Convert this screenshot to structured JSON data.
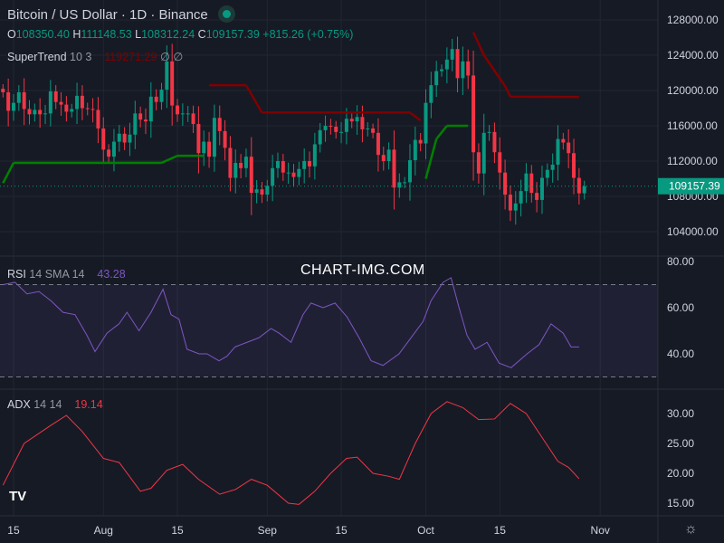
{
  "header": {
    "title": "Bitcoin / US Dollar · 1D · Binance",
    "market_status": "open",
    "ohlc": {
      "o_label": "O",
      "o": "108350.40",
      "h_label": "H",
      "h": "111148.53",
      "l_label": "L",
      "l": "108312.24",
      "c_label": "C",
      "c": "109157.39",
      "change": "+815.26 (+0.75%)"
    }
  },
  "indicators": {
    "supertrend": {
      "name": "SuperTrend",
      "params": "10 3",
      "value": "119271.29",
      "v2": "∅",
      "v3": "∅"
    },
    "rsi": {
      "name": "RSI",
      "params": "14 SMA 14",
      "value": "43.28"
    },
    "adx": {
      "name": "ADX",
      "params": "14 14",
      "value": "19.14"
    }
  },
  "watermark": "CHART-IMG.COM",
  "colors": {
    "up": "#089981",
    "down": "#f23645",
    "st_up": "#008000",
    "st_down": "#800000",
    "rsi": "#7e57c2",
    "adx": "#f23645",
    "bg": "#161a25"
  },
  "chart_data": {
    "type": "candlestick",
    "start_date": "2025-07-13",
    "price_axis": {
      "ticks": [
        "128000.00",
        "124000.00",
        "120000.00",
        "116000.00",
        "112000.00",
        "108000.00",
        "104000.00"
      ],
      "range": [
        102500,
        129500
      ]
    },
    "last_price": "109157.39",
    "x_ticks": [
      {
        "label": "15",
        "date": "07-15"
      },
      {
        "label": "Aug",
        "date": "08-01"
      },
      {
        "label": "15",
        "date": "08-15"
      },
      {
        "label": "Sep",
        "date": "09-01"
      },
      {
        "label": "15",
        "date": "09-15"
      },
      {
        "label": "Oct",
        "date": "10-01"
      },
      {
        "label": "15",
        "date": "10-15"
      },
      {
        "label": "Nov",
        "date": "11-01"
      }
    ],
    "closes_k": [
      119.8,
      117.7,
      118.6,
      119.8,
      117.9,
      117.3,
      117.8,
      117.3,
      117.4,
      119.9,
      118.7,
      118.4,
      117.6,
      117.9,
      119.4,
      118.0,
      117.9,
      117.8,
      115.7,
      113.3,
      112.5,
      114.2,
      115.1,
      114.1,
      115.0,
      117.4,
      116.7,
      116.5,
      119.3,
      118.7,
      120.1,
      123.3,
      118.3,
      117.3,
      117.4,
      117.4,
      116.2,
      112.9,
      114.2,
      112.5,
      116.9,
      115.4,
      113.5,
      110.1,
      111.8,
      111.2,
      112.5,
      108.4,
      108.8,
      108.2,
      109.2,
      111.2,
      112.0,
      110.7,
      110.7,
      110.2,
      111.1,
      112.0,
      111.4,
      113.9,
      115.5,
      116.0,
      115.9,
      115.3,
      115.3,
      116.8,
      116.5,
      117.0,
      115.6,
      115.7,
      115.2,
      112.7,
      112.0,
      113.3,
      109.0,
      109.6,
      109.6,
      112.1,
      114.4,
      114.0,
      118.6,
      120.6,
      122.2,
      122.4,
      123.5,
      124.7,
      121.4,
      123.3,
      121.7,
      113.0,
      110.6,
      115.2,
      115.3,
      113.0,
      110.7,
      108.2,
      106.4,
      107.2,
      108.6,
      110.6,
      108.4,
      107.6,
      110.1,
      111.0,
      111.6,
      114.5,
      114.1,
      112.9,
      110.1,
      108.35,
      109.157
    ],
    "supertrend": [
      [
        0,
        109.5,
        "up"
      ],
      [
        2,
        111.8,
        "up"
      ],
      [
        30,
        111.8,
        "up"
      ],
      [
        33,
        112.6,
        "up"
      ],
      [
        38,
        112.6,
        "up"
      ],
      [
        39,
        120.6,
        "down"
      ],
      [
        46,
        120.6,
        "down"
      ],
      [
        49,
        117.5,
        "down"
      ],
      [
        77,
        117.5,
        "down"
      ],
      [
        79,
        116.6,
        "down"
      ],
      [
        80,
        110.0,
        "up"
      ],
      [
        82,
        114.5,
        "up"
      ],
      [
        84,
        116.0,
        "up"
      ],
      [
        88,
        116.0,
        "up"
      ],
      [
        89,
        126.6,
        "down"
      ],
      [
        91,
        124.0,
        "down"
      ],
      [
        95,
        120.5,
        "down"
      ],
      [
        96,
        119.3,
        "down"
      ],
      [
        109,
        119.27,
        "down"
      ]
    ],
    "rsi": {
      "ticks": [
        "80.00",
        "60.00",
        "40.00"
      ],
      "band": [
        30,
        70
      ],
      "points": [
        [
          0,
          70
        ],
        [
          3,
          71
        ],
        [
          6,
          66
        ],
        [
          9,
          67
        ],
        [
          12,
          63
        ],
        [
          15,
          58
        ],
        [
          18,
          57
        ],
        [
          21,
          48
        ],
        [
          23,
          41
        ],
        [
          26,
          49
        ],
        [
          29,
          53
        ],
        [
          31,
          58
        ],
        [
          34,
          50
        ],
        [
          37,
          58
        ],
        [
          40,
          68
        ],
        [
          42,
          57
        ],
        [
          44,
          55
        ],
        [
          46,
          42
        ],
        [
          49,
          40
        ],
        [
          51,
          40
        ],
        [
          54,
          37
        ],
        [
          56,
          39
        ],
        [
          58,
          43
        ],
        [
          61,
          45
        ],
        [
          64,
          47
        ],
        [
          67,
          51
        ],
        [
          69,
          49
        ],
        [
          72,
          45
        ],
        [
          75,
          57
        ],
        [
          77,
          62
        ],
        [
          80,
          60
        ],
        [
          83,
          62
        ],
        [
          86,
          56
        ],
        [
          89,
          47
        ],
        [
          92,
          37
        ],
        [
          95,
          35
        ],
        [
          99,
          40
        ],
        [
          102,
          47
        ],
        [
          105,
          54
        ],
        [
          107,
          63
        ],
        [
          110,
          71
        ],
        [
          112,
          73
        ],
        [
          114,
          60
        ],
        [
          116,
          48
        ],
        [
          118,
          42
        ],
        [
          121,
          45
        ],
        [
          124,
          36
        ],
        [
          127,
          34
        ],
        [
          131,
          40
        ],
        [
          134,
          44
        ],
        [
          137,
          53
        ],
        [
          140,
          49
        ],
        [
          142,
          43
        ],
        [
          144,
          43
        ]
      ]
    },
    "adx": {
      "ticks": [
        "30.00",
        "25.00",
        "20.00",
        "15.00"
      ],
      "points": [
        [
          0,
          18
        ],
        [
          4,
          25
        ],
        [
          9,
          28
        ],
        [
          12,
          29.7
        ],
        [
          15,
          27
        ],
        [
          19,
          22.5
        ],
        [
          22,
          21.8
        ],
        [
          26,
          17
        ],
        [
          28,
          17.5
        ],
        [
          31,
          20.5
        ],
        [
          34,
          21.5
        ],
        [
          37,
          19
        ],
        [
          41,
          16.5
        ],
        [
          44,
          17.3
        ],
        [
          47,
          19
        ],
        [
          50,
          18
        ],
        [
          54,
          15
        ],
        [
          56,
          14.8
        ],
        [
          59,
          17
        ],
        [
          62,
          20
        ],
        [
          65,
          22.5
        ],
        [
          67,
          22.7
        ],
        [
          70,
          20
        ],
        [
          73,
          19.5
        ],
        [
          75,
          19
        ],
        [
          78,
          25
        ],
        [
          81,
          30
        ],
        [
          84,
          32
        ],
        [
          87,
          31
        ],
        [
          90,
          29
        ],
        [
          93,
          29.1
        ],
        [
          96,
          31.7
        ],
        [
          99,
          30
        ],
        [
          102,
          26
        ],
        [
          105,
          22
        ],
        [
          107,
          21
        ],
        [
          109,
          19.1
        ]
      ]
    }
  }
}
